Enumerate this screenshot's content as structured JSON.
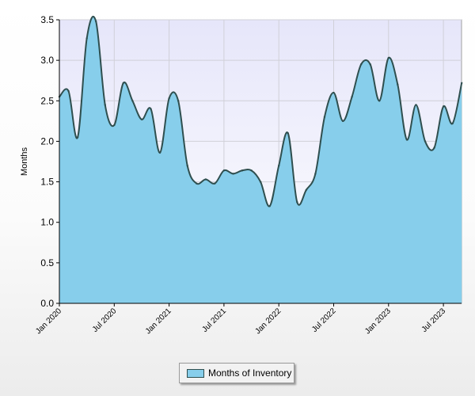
{
  "chart_data": {
    "type": "area",
    "ylabel": "Months",
    "ylim": [
      0,
      3.5
    ],
    "yticks": [
      "0.0",
      "0.5",
      "1.0",
      "1.5",
      "2.0",
      "2.5",
      "3.0",
      "3.5"
    ],
    "xticks": [
      "Jan 2020",
      "Jul 2020",
      "Jan 2021",
      "Jul 2021",
      "Jan 2022",
      "Jul 2022",
      "Jan 2023",
      "Jul 2023"
    ],
    "x_start": "2020-01",
    "grid": true,
    "legend_position": "bottom-center",
    "series": [
      {
        "name": "Months of Inventory",
        "fill_color": "#87ceeb",
        "line_color": "#2f4f4f",
        "x": [
          "2020-01",
          "2020-02",
          "2020-03",
          "2020-04",
          "2020-05",
          "2020-06",
          "2020-07",
          "2020-08",
          "2020-09",
          "2020-10",
          "2020-11",
          "2020-12",
          "2021-01",
          "2021-02",
          "2021-03",
          "2021-04",
          "2021-05",
          "2021-06",
          "2021-07",
          "2021-08",
          "2021-09",
          "2021-10",
          "2021-11",
          "2021-12",
          "2022-01",
          "2022-02",
          "2022-03",
          "2022-04",
          "2022-05",
          "2022-06",
          "2022-07",
          "2022-08",
          "2022-09",
          "2022-10",
          "2022-11",
          "2022-12",
          "2023-01",
          "2023-02",
          "2023-03",
          "2023-04",
          "2023-05",
          "2023-06",
          "2023-07",
          "2023-08",
          "2023-09"
        ],
        "values": [
          2.55,
          2.62,
          2.05,
          3.27,
          3.48,
          2.45,
          2.2,
          2.72,
          2.5,
          2.27,
          2.4,
          1.86,
          2.53,
          2.5,
          1.7,
          1.48,
          1.53,
          1.48,
          1.64,
          1.6,
          1.64,
          1.64,
          1.5,
          1.2,
          1.7,
          2.1,
          1.25,
          1.4,
          1.6,
          2.3,
          2.6,
          2.25,
          2.55,
          2.95,
          2.95,
          2.5,
          3.03,
          2.7,
          2.02,
          2.45,
          2.0,
          1.92,
          2.43,
          2.22,
          2.72
        ]
      }
    ]
  }
}
